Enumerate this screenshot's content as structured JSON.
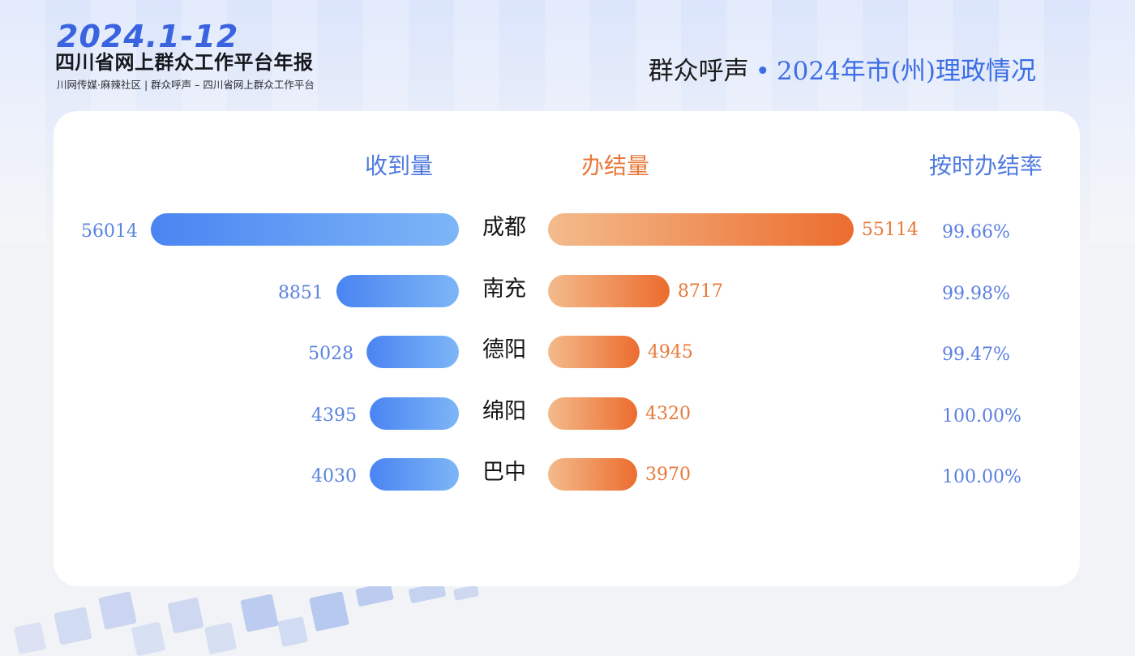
{
  "header": {
    "brand_year": "2024.1-12",
    "brand_title": "四川省网上群众工作平台年报",
    "brand_subtitle": "川网传媒·麻辣社区 | 群众呼声 – 四川省网上群众工作平台",
    "headline_left": "群众呼声",
    "headline_dot": "•",
    "headline_right": "2024年市(州)理政情况"
  },
  "colors": {
    "received_start": "#4a84f2",
    "received_end": "#7db6f6",
    "completed_start": "#f3bb8c",
    "completed_end": "#ec6c2e",
    "received_text": "#5a83dd",
    "completed_text": "#e8793a",
    "rate_text": "#5a7fe0"
  },
  "chart_data": {
    "type": "bar",
    "title": "",
    "column_headers": {
      "received": "收到量",
      "completed": "办结量",
      "rate": "按时办结率"
    },
    "categories": [
      "成都",
      "南充",
      "德阳",
      "绵阳",
      "巴中"
    ],
    "series": [
      {
        "name": "收到量",
        "values": [
          56014,
          8851,
          5028,
          4395,
          4030
        ]
      },
      {
        "name": "办结量",
        "values": [
          55114,
          8717,
          4945,
          4320,
          3970
        ]
      }
    ],
    "rate_labels": [
      "99.66%",
      "99.98%",
      "99.47%",
      "100.00%",
      "100.00%"
    ]
  }
}
